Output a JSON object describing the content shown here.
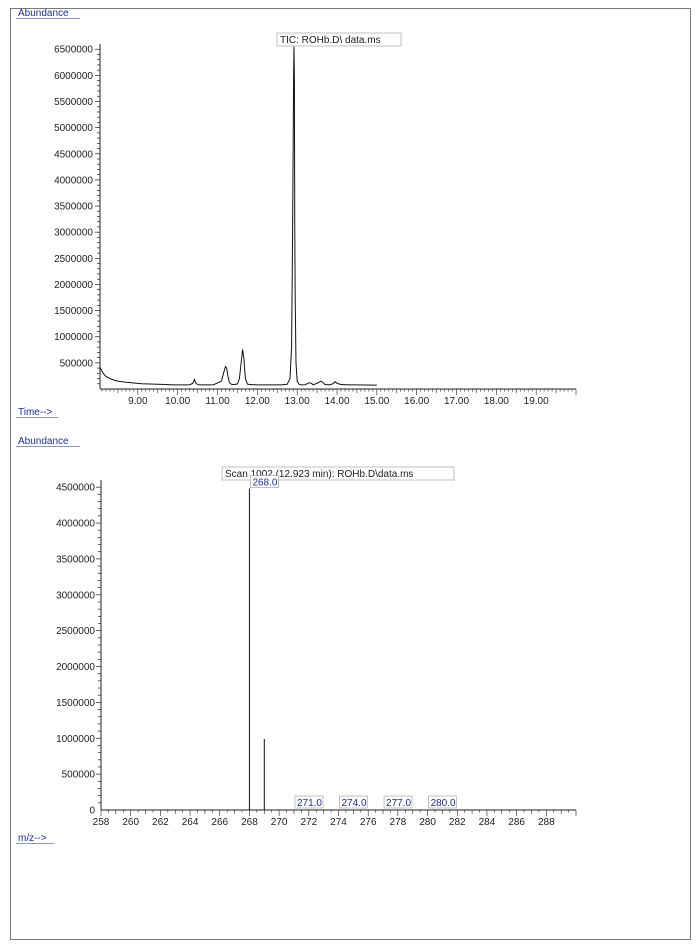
{
  "chart_data": [
    {
      "type": "line",
      "title": "TIC: ROHb.D\\ data.ms",
      "ylabel": "Abundance",
      "xlabel": "Time-->",
      "xlim": [
        8.05,
        20.0
      ],
      "ylim": [
        0,
        6600000
      ],
      "x_ticks": [
        "9.00",
        "10.00",
        "11.00",
        "12.00",
        "13.00",
        "14.00",
        "15.00",
        "16.00",
        "17.00",
        "18.00",
        "19.00"
      ],
      "y_ticks": [
        "500000",
        "1000000",
        "1500000",
        "2000000",
        "2500000",
        "3000000",
        "3500000",
        "4000000",
        "4500000",
        "5000000",
        "5500000",
        "6000000",
        "6500000"
      ],
      "grid": false,
      "series": [
        {
          "x": [
            8.05,
            8.1,
            8.15,
            8.2,
            8.3,
            8.4,
            8.5,
            8.7,
            8.9,
            9.1,
            9.3,
            9.5,
            9.7,
            9.9,
            10.1,
            10.3,
            10.38,
            10.42,
            10.45,
            10.5,
            10.55,
            10.7,
            10.9,
            11.1,
            11.15,
            11.2,
            11.23,
            11.26,
            11.3,
            11.35,
            11.4,
            11.5,
            11.55,
            11.6,
            11.63,
            11.66,
            11.7,
            11.75,
            11.8,
            12.0,
            12.2,
            12.4,
            12.6,
            12.75,
            12.82,
            12.86,
            12.88,
            12.9,
            12.91,
            12.92,
            12.93,
            12.94,
            12.95,
            12.97,
            13.0,
            13.05,
            13.1,
            13.2,
            13.3,
            13.35,
            13.4,
            13.5,
            13.6,
            13.65,
            13.7,
            13.8,
            13.9,
            13.95,
            14.0,
            14.1,
            14.3,
            14.5,
            14.7,
            14.9,
            15.0
          ],
          "y": [
            420000,
            340000,
            280000,
            240000,
            200000,
            170000,
            150000,
            130000,
            115000,
            100000,
            95000,
            90000,
            85000,
            80000,
            78000,
            80000,
            110000,
            180000,
            120000,
            85000,
            80000,
            78000,
            82000,
            150000,
            300000,
            430000,
            400000,
            250000,
            120000,
            90000,
            85000,
            95000,
            200000,
            550000,
            760000,
            600000,
            200000,
            95000,
            85000,
            80000,
            78000,
            78000,
            80000,
            90000,
            200000,
            800000,
            2500000,
            4700000,
            6000000,
            6550000,
            5900000,
            3000000,
            1800000,
            500000,
            150000,
            90000,
            80000,
            82000,
            120000,
            110000,
            80000,
            110000,
            150000,
            120000,
            85000,
            80000,
            100000,
            140000,
            110000,
            85000,
            80000,
            78000,
            76000,
            75000,
            75000
          ]
        }
      ]
    },
    {
      "type": "bar",
      "title": "Scan 1002 (12.923 min): ROHb.D\\data.ms",
      "ylabel": "Abundance",
      "xlabel": "m/z-->",
      "xlim": [
        258,
        290
      ],
      "ylim": [
        0,
        4600000
      ],
      "x_ticks": [
        "258",
        "260",
        "262",
        "264",
        "266",
        "268",
        "270",
        "272",
        "274",
        "276",
        "278",
        "280",
        "282",
        "284",
        "286",
        "288"
      ],
      "y_ticks": [
        "0",
        "500000",
        "1000000",
        "1500000",
        "2000000",
        "2500000",
        "3000000",
        "3500000",
        "4000000",
        "4500000"
      ],
      "grid": false,
      "x": [
        268.0,
        269.0,
        271.0,
        274.0,
        277.0,
        280.0
      ],
      "values": [
        4480000,
        990000,
        0,
        0,
        0,
        0
      ],
      "peak_labels": [
        "268.0",
        "",
        "271.0",
        "274.0",
        "277.0",
        "280.0"
      ]
    }
  ]
}
